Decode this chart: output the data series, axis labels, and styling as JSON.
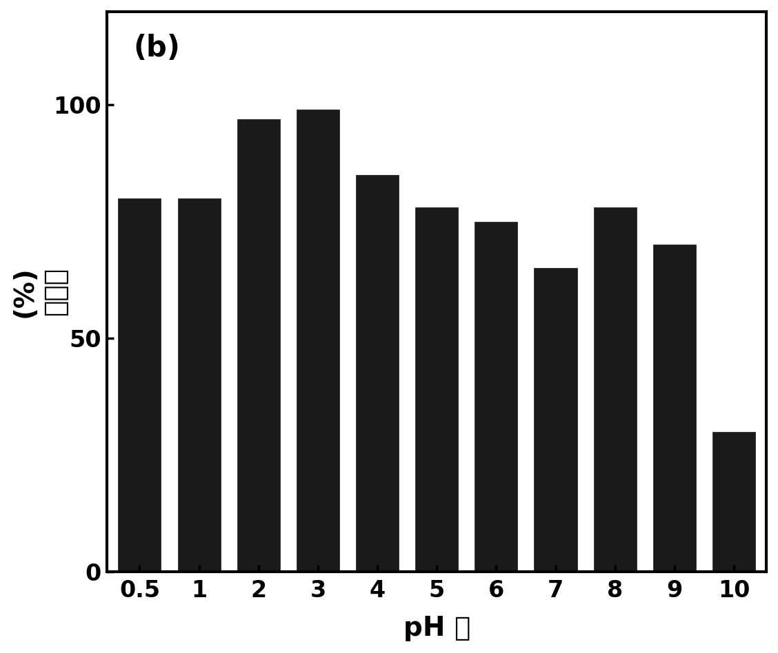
{
  "categories": [
    "0.5",
    "1",
    "2",
    "3",
    "4",
    "5",
    "6",
    "7",
    "8",
    "9",
    "10"
  ],
  "values": [
    80,
    80,
    97,
    99,
    85,
    78,
    75,
    65,
    78,
    70,
    30
  ],
  "bar_color": "#1a1a1a",
  "xlabel": "pH 値",
  "ylabel_line1": "(%)",
  "ylabel_line2": "去除率",
  "ylim": [
    0,
    120
  ],
  "yticks": [
    0,
    50,
    100
  ],
  "label": "(b)",
  "background_color": "#ffffff",
  "bar_edge_color": "#1a1a1a",
  "panel_fontsize": 30,
  "label_fontsize": 28,
  "tick_fontsize": 24,
  "axis_linewidth": 3.0
}
